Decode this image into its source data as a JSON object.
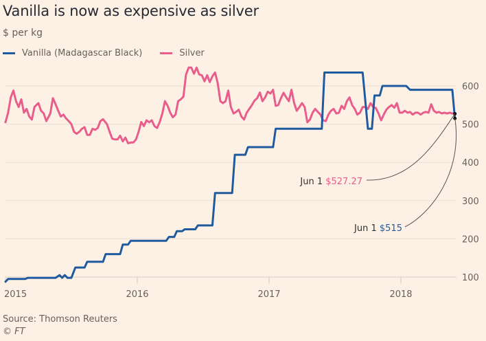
{
  "chart_data": {
    "type": "line",
    "title": "Vanilla is now as expensive as silver",
    "subtitle": "$ per kg",
    "xlabel": "",
    "ylabel": "$ per kg",
    "xlim": [
      2015.0,
      2018.45
    ],
    "ylim": [
      80,
      660
    ],
    "x_ticks": [
      2015,
      2016,
      2017,
      2018
    ],
    "x_tick_labels": [
      "2015",
      "2016",
      "2017",
      "2018"
    ],
    "y_ticks": [
      100,
      200,
      300,
      400,
      500,
      600
    ],
    "y_tick_labels": [
      "100",
      "200",
      "300",
      "400",
      "500",
      "600"
    ],
    "y_axis_side": "right",
    "grid": true,
    "legend_position": "top-left",
    "series": [
      {
        "name": "Vanilla (Madagascar Black)",
        "color": "#1f5a9e",
        "step": true,
        "points": [
          [
            2015.0,
            88
          ],
          [
            2015.02,
            95
          ],
          [
            2015.15,
            95
          ],
          [
            2015.17,
            98
          ],
          [
            2015.38,
            98
          ],
          [
            2015.41,
            105
          ],
          [
            2015.43,
            98
          ],
          [
            2015.45,
            105
          ],
          [
            2015.47,
            98
          ],
          [
            2015.5,
            98
          ],
          [
            2015.53,
            125
          ],
          [
            2015.6,
            125
          ],
          [
            2015.62,
            140
          ],
          [
            2015.74,
            140
          ],
          [
            2015.76,
            160
          ],
          [
            2015.87,
            160
          ],
          [
            2015.89,
            185
          ],
          [
            2015.93,
            185
          ],
          [
            2015.95,
            195
          ],
          [
            2016.22,
            195
          ],
          [
            2016.24,
            205
          ],
          [
            2016.28,
            205
          ],
          [
            2016.3,
            220
          ],
          [
            2016.34,
            220
          ],
          [
            2016.36,
            225
          ],
          [
            2016.44,
            225
          ],
          [
            2016.46,
            235
          ],
          [
            2016.57,
            235
          ],
          [
            2016.59,
            320
          ],
          [
            2016.72,
            320
          ],
          [
            2016.74,
            420
          ],
          [
            2016.82,
            420
          ],
          [
            2016.84,
            440
          ],
          [
            2017.03,
            440
          ],
          [
            2017.05,
            488
          ],
          [
            2017.4,
            488
          ],
          [
            2017.42,
            635
          ],
          [
            2017.71,
            635
          ],
          [
            2017.75,
            488
          ],
          [
            2017.78,
            488
          ],
          [
            2017.8,
            575
          ],
          [
            2017.84,
            575
          ],
          [
            2017.86,
            600
          ],
          [
            2018.04,
            600
          ],
          [
            2018.07,
            590
          ],
          [
            2018.39,
            590
          ],
          [
            2018.41,
            515
          ]
        ]
      },
      {
        "name": "Silver",
        "color": "#e95d8c",
        "step": false,
        "points": [
          [
            2015.0,
            505
          ],
          [
            2015.02,
            530
          ],
          [
            2015.04,
            570
          ],
          [
            2015.06,
            588
          ],
          [
            2015.08,
            560
          ],
          [
            2015.1,
            545
          ],
          [
            2015.12,
            565
          ],
          [
            2015.14,
            530
          ],
          [
            2015.16,
            540
          ],
          [
            2015.18,
            520
          ],
          [
            2015.2,
            512
          ],
          [
            2015.22,
            545
          ],
          [
            2015.25,
            555
          ],
          [
            2015.27,
            535
          ],
          [
            2015.29,
            528
          ],
          [
            2015.31,
            508
          ],
          [
            2015.34,
            528
          ],
          [
            2015.36,
            568
          ],
          [
            2015.38,
            552
          ],
          [
            2015.4,
            535
          ],
          [
            2015.42,
            520
          ],
          [
            2015.44,
            525
          ],
          [
            2015.46,
            515
          ],
          [
            2015.48,
            508
          ],
          [
            2015.5,
            500
          ],
          [
            2015.52,
            480
          ],
          [
            2015.54,
            475
          ],
          [
            2015.56,
            480
          ],
          [
            2015.58,
            488
          ],
          [
            2015.6,
            492
          ],
          [
            2015.62,
            472
          ],
          [
            2015.64,
            472
          ],
          [
            2015.66,
            488
          ],
          [
            2015.68,
            485
          ],
          [
            2015.7,
            490
          ],
          [
            2015.72,
            508
          ],
          [
            2015.74,
            513
          ],
          [
            2015.77,
            500
          ],
          [
            2015.79,
            480
          ],
          [
            2015.81,
            462
          ],
          [
            2015.83,
            460
          ],
          [
            2015.85,
            460
          ],
          [
            2015.87,
            470
          ],
          [
            2015.89,
            455
          ],
          [
            2015.91,
            465
          ],
          [
            2015.93,
            450
          ],
          [
            2015.95,
            452
          ],
          [
            2015.97,
            452
          ],
          [
            2015.99,
            460
          ],
          [
            2016.01,
            480
          ],
          [
            2016.03,
            506
          ],
          [
            2016.05,
            495
          ],
          [
            2016.07,
            510
          ],
          [
            2016.09,
            505
          ],
          [
            2016.11,
            510
          ],
          [
            2016.13,
            495
          ],
          [
            2016.15,
            490
          ],
          [
            2016.17,
            505
          ],
          [
            2016.19,
            528
          ],
          [
            2016.21,
            560
          ],
          [
            2016.23,
            548
          ],
          [
            2016.25,
            530
          ],
          [
            2016.27,
            518
          ],
          [
            2016.29,
            525
          ],
          [
            2016.31,
            560
          ],
          [
            2016.33,
            565
          ],
          [
            2016.35,
            572
          ],
          [
            2016.37,
            630
          ],
          [
            2016.39,
            648
          ],
          [
            2016.41,
            648
          ],
          [
            2016.43,
            632
          ],
          [
            2016.45,
            648
          ],
          [
            2016.47,
            630
          ],
          [
            2016.49,
            628
          ],
          [
            2016.51,
            612
          ],
          [
            2016.53,
            628
          ],
          [
            2016.55,
            610
          ],
          [
            2016.57,
            625
          ],
          [
            2016.59,
            635
          ],
          [
            2016.61,
            608
          ],
          [
            2016.63,
            560
          ],
          [
            2016.65,
            555
          ],
          [
            2016.67,
            560
          ],
          [
            2016.69,
            588
          ],
          [
            2016.71,
            545
          ],
          [
            2016.73,
            528
          ],
          [
            2016.75,
            532
          ],
          [
            2016.77,
            538
          ],
          [
            2016.79,
            520
          ],
          [
            2016.81,
            512
          ],
          [
            2016.83,
            530
          ],
          [
            2016.85,
            540
          ],
          [
            2016.87,
            550
          ],
          [
            2016.89,
            562
          ],
          [
            2016.91,
            568
          ],
          [
            2016.93,
            583
          ],
          [
            2016.95,
            560
          ],
          [
            2016.97,
            570
          ],
          [
            2016.99,
            585
          ],
          [
            2017.01,
            580
          ],
          [
            2017.03,
            590
          ],
          [
            2017.05,
            548
          ],
          [
            2017.07,
            550
          ],
          [
            2017.09,
            568
          ],
          [
            2017.11,
            582
          ],
          [
            2017.13,
            570
          ],
          [
            2017.15,
            560
          ],
          [
            2017.17,
            590
          ],
          [
            2017.19,
            555
          ],
          [
            2017.21,
            535
          ],
          [
            2017.23,
            545
          ],
          [
            2017.25,
            555
          ],
          [
            2017.27,
            545
          ],
          [
            2017.29,
            505
          ],
          [
            2017.31,
            512
          ],
          [
            2017.33,
            530
          ],
          [
            2017.35,
            540
          ],
          [
            2017.37,
            532
          ],
          [
            2017.39,
            525
          ],
          [
            2017.41,
            510
          ],
          [
            2017.43,
            508
          ],
          [
            2017.45,
            525
          ],
          [
            2017.47,
            535
          ],
          [
            2017.49,
            540
          ],
          [
            2017.51,
            528
          ],
          [
            2017.53,
            530
          ],
          [
            2017.55,
            548
          ],
          [
            2017.57,
            540
          ],
          [
            2017.59,
            560
          ],
          [
            2017.61,
            570
          ],
          [
            2017.63,
            550
          ],
          [
            2017.65,
            540
          ],
          [
            2017.67,
            525
          ],
          [
            2017.69,
            530
          ],
          [
            2017.71,
            545
          ],
          [
            2017.73,
            545
          ],
          [
            2017.75,
            540
          ],
          [
            2017.77,
            555
          ],
          [
            2017.79,
            545
          ],
          [
            2017.81,
            542
          ],
          [
            2017.83,
            528
          ],
          [
            2017.85,
            510
          ],
          [
            2017.87,
            525
          ],
          [
            2017.89,
            538
          ],
          [
            2017.91,
            545
          ],
          [
            2017.93,
            550
          ],
          [
            2017.95,
            543
          ],
          [
            2017.97,
            555
          ],
          [
            2017.99,
            530
          ],
          [
            2018.01,
            530
          ],
          [
            2018.03,
            535
          ],
          [
            2018.05,
            530
          ],
          [
            2018.07,
            532
          ],
          [
            2018.09,
            525
          ],
          [
            2018.11,
            530
          ],
          [
            2018.13,
            530
          ],
          [
            2018.15,
            525
          ],
          [
            2018.17,
            530
          ],
          [
            2018.19,
            532
          ],
          [
            2018.21,
            530
          ],
          [
            2018.23,
            552
          ],
          [
            2018.25,
            535
          ],
          [
            2018.27,
            530
          ],
          [
            2018.29,
            532
          ],
          [
            2018.31,
            528
          ],
          [
            2018.33,
            530
          ],
          [
            2018.35,
            528
          ],
          [
            2018.37,
            530
          ],
          [
            2018.39,
            528
          ],
          [
            2018.41,
            527.27
          ]
        ]
      }
    ],
    "annotations": [
      {
        "series": "Silver",
        "date_label": "Jun 1",
        "value_label": "$527.27",
        "x": 2018.41,
        "y": 527.27,
        "color": "#e95d8c"
      },
      {
        "series": "Vanilla (Madagascar Black)",
        "date_label": "Jun 1",
        "value_label": "$515",
        "x": 2018.41,
        "y": 515,
        "color": "#1f5a9e"
      }
    ]
  },
  "legend": {
    "items": [
      {
        "label": "Vanilla (Madagascar Black)",
        "color": "#1f5a9e"
      },
      {
        "label": "Silver",
        "color": "#e95d8c"
      }
    ]
  },
  "footer": {
    "source": "Source: Thomson Reuters",
    "credit": "© FT"
  }
}
